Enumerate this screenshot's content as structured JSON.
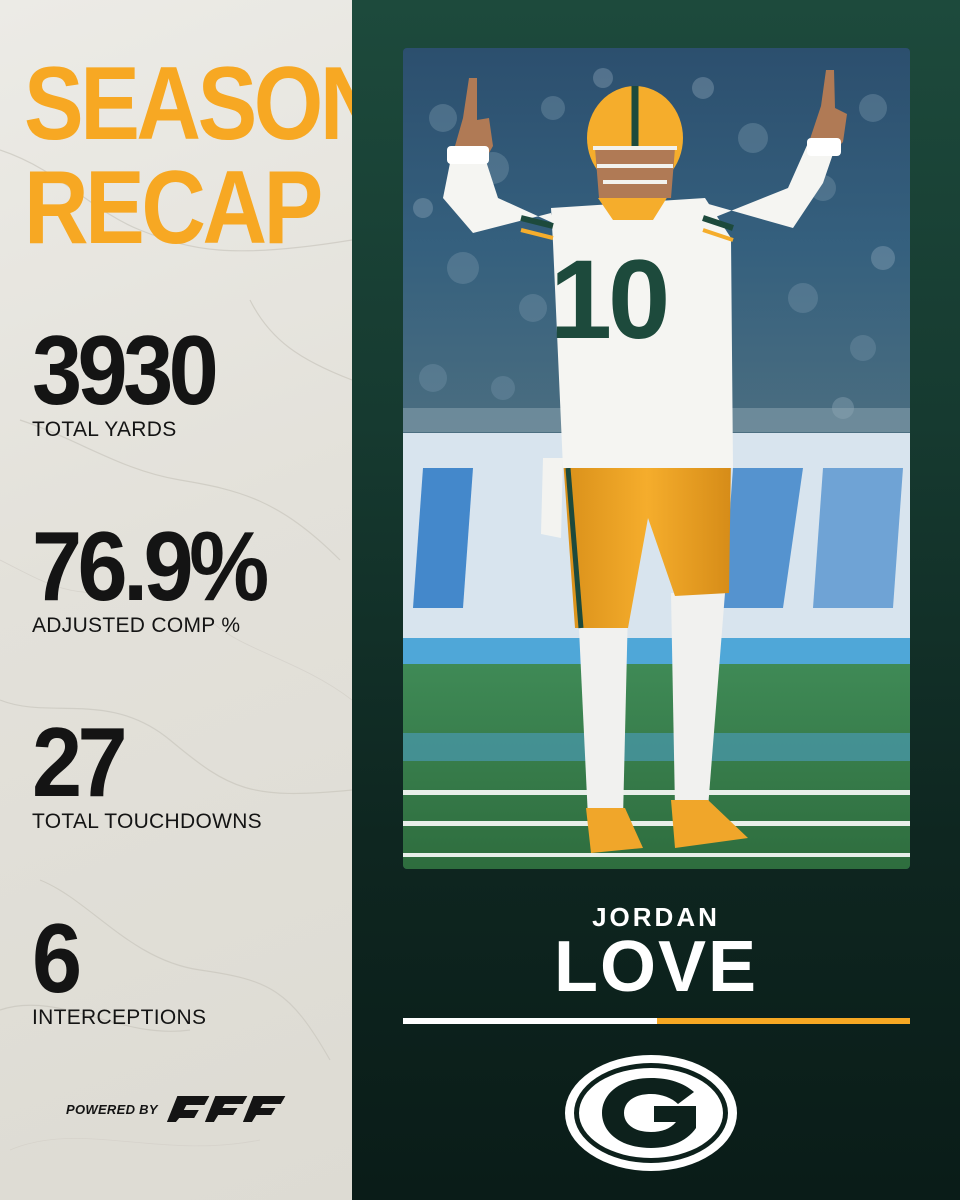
{
  "headline": {
    "line1": "SEASON",
    "line2": "RECAP"
  },
  "stats": [
    {
      "value": "3930",
      "label": "TOTAL YARDS"
    },
    {
      "value": "76.9%",
      "label": "ADJUSTED COMP %"
    },
    {
      "value": "27",
      "label": "TOTAL TOUCHDOWNS"
    },
    {
      "value": "6",
      "label": "INTERCEPTIONS"
    }
  ],
  "powered_by": {
    "label": "POWERED BY",
    "brand": "PFF"
  },
  "player": {
    "first_name": "JORDAN",
    "last_name": "LOVE",
    "jersey_number": "10"
  },
  "icons": {
    "team_logo": "green-bay-g-logo-icon",
    "sponsor_logo": "pff-logo-icon",
    "photo": "player-photo"
  },
  "colors": {
    "accent_gold": "#f7a823",
    "team_green": "#1d4a3c",
    "stat_text": "#141414",
    "panel_bg": "#e6e4de",
    "name_text": "#ffffff"
  }
}
